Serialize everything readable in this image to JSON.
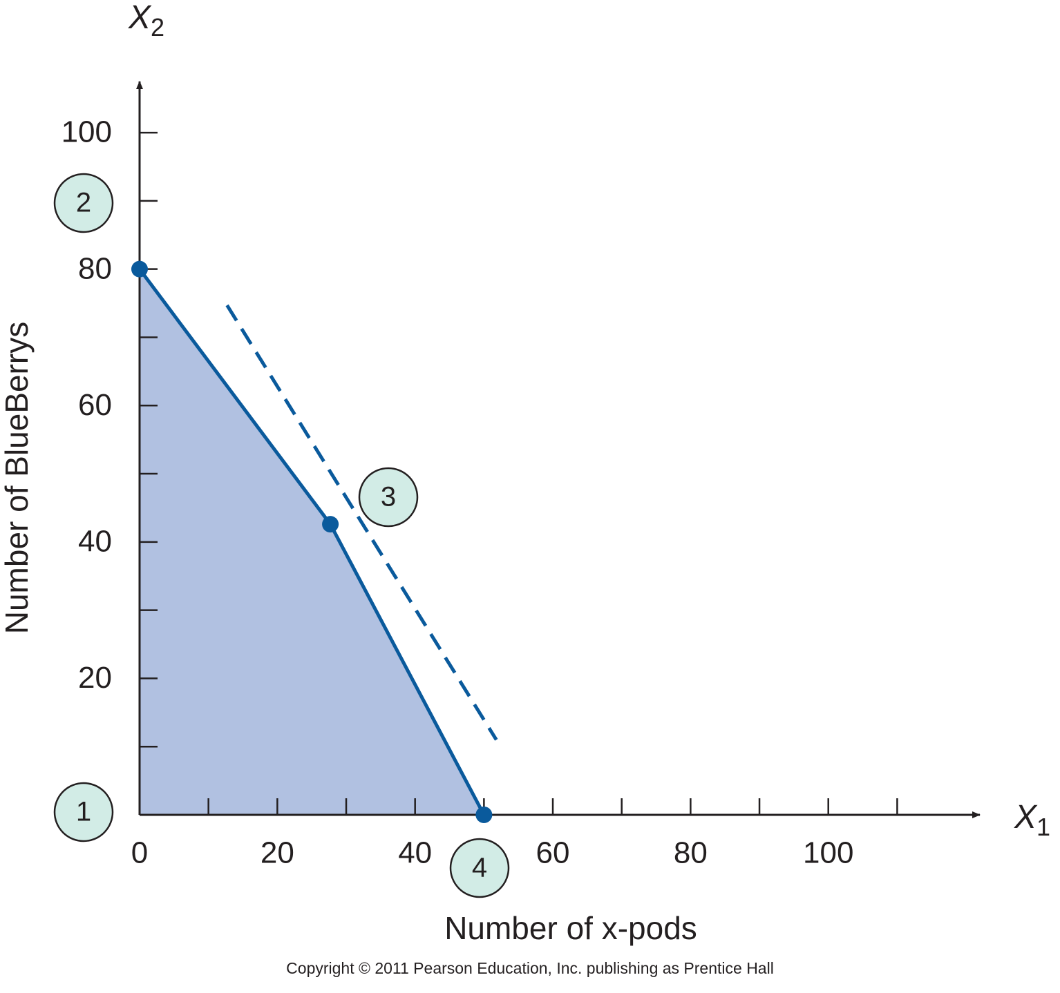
{
  "chart_data": {
    "type": "line",
    "x_label": "Number of x-pods",
    "y_label": "Number of BlueBerrys",
    "x_symbol": {
      "letter": "X",
      "subscript": "1"
    },
    "y_symbol": {
      "letter": "X",
      "subscript": "2"
    },
    "copyright": "Copyright © 2011 Pearson Education, Inc. publishing as Prentice Hall",
    "xlim": [
      0,
      122
    ],
    "ylim": [
      0,
      107.5
    ],
    "xticks": [
      0,
      20,
      40,
      60,
      80,
      100
    ],
    "yticks": [
      20,
      40,
      60,
      80,
      100
    ],
    "x_minor_ticks": [
      10,
      30,
      50,
      70,
      90,
      110
    ],
    "y_minor_ticks": [
      10,
      30,
      50,
      70,
      90
    ],
    "region_color": "#b1c1e1",
    "series": [
      {
        "color": "#0a5a9c",
        "style": "solid",
        "fill_region": true,
        "markers": true,
        "x": [
          0,
          27.7,
          50
        ],
        "values": [
          80,
          42.6,
          0
        ]
      },
      {
        "color": "#0a5a9c",
        "style": "dashed",
        "fill_region": false,
        "markers": false,
        "x": [
          12.7,
          51.8
        ],
        "values": [
          74.7,
          11.0
        ]
      }
    ],
    "annotations": [
      "1",
      "2",
      "3",
      "4"
    ]
  }
}
